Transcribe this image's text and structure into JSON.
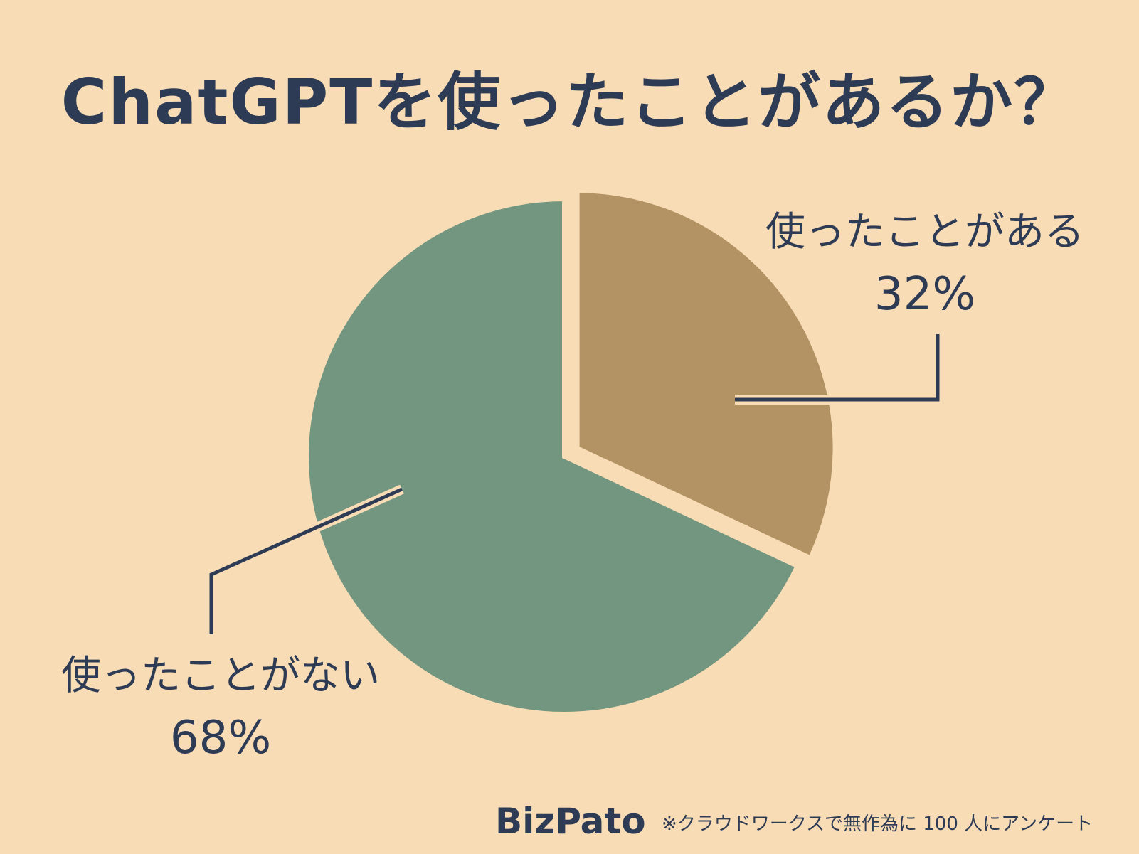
{
  "colors": {
    "background": "#f8dcb5",
    "text": "#2e3b55",
    "used_slice": "#b39363",
    "not_used_slice": "#739680"
  },
  "chart_data": {
    "type": "pie",
    "title": "ChatGPTを使ったことがあるか？",
    "slices": [
      {
        "label": "使ったことがある",
        "value": 32,
        "value_label": "32%",
        "exploded": true
      },
      {
        "label": "使ったことがない",
        "value": 68,
        "value_label": "68%",
        "exploded": false
      }
    ],
    "start_angle": "12 o'clock",
    "direction": "clockwise",
    "legend": "none"
  },
  "footer": {
    "brand": "BizPato",
    "note": "※クラウドワークスで無作為に 100 人にアンケート"
  }
}
